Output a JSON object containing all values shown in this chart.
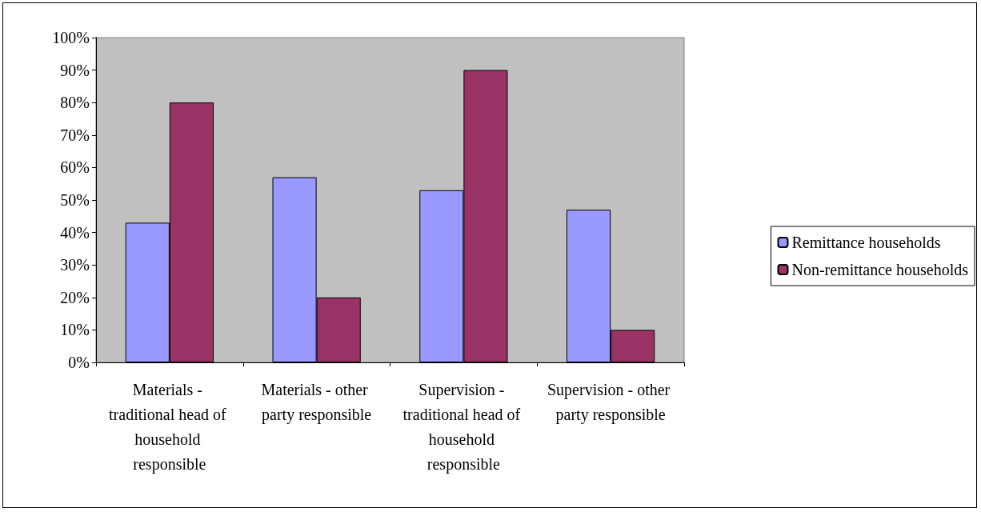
{
  "chart_data": {
    "type": "bar",
    "categories": [
      "Materials - traditional head of household responsible",
      "Materials - other party responsible",
      "Supervision - traditional head of household responsible",
      "Supervision - other party responsible"
    ],
    "series": [
      {
        "name": "Remittance households",
        "color": "#9999ff",
        "values": [
          43,
          57,
          53,
          47
        ]
      },
      {
        "name": "Non-remittance households",
        "color": "#993366",
        "values": [
          80,
          20,
          90,
          10
        ]
      }
    ],
    "ylim": [
      0,
      100
    ],
    "yticks": [
      {
        "value": 0,
        "label": "0%"
      },
      {
        "value": 10,
        "label": "10%"
      },
      {
        "value": 20,
        "label": "20%"
      },
      {
        "value": 30,
        "label": "30%"
      },
      {
        "value": 40,
        "label": "40%"
      },
      {
        "value": 50,
        "label": "50%"
      },
      {
        "value": 60,
        "label": "60%"
      },
      {
        "value": 70,
        "label": "70%"
      },
      {
        "value": 80,
        "label": "80%"
      },
      {
        "value": 90,
        "label": "90%"
      },
      {
        "value": 100,
        "label": "100%"
      }
    ],
    "grid": false,
    "legend": "right"
  }
}
